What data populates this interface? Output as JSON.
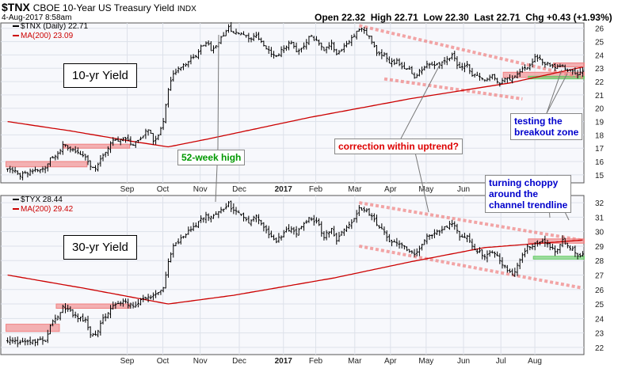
{
  "header": {
    "symbol": "$TNX",
    "name": "CBOE 10-Year US Treasury Yield",
    "exchange": "INDX",
    "date": "4-Aug-2017 8:58am",
    "open_label": "Open",
    "open": "22.32",
    "high_label": "High",
    "high": "22.71",
    "low_label": "Low",
    "low": "22.30",
    "last_label": "Last",
    "last": "22.71",
    "chg_label": "Chg",
    "chg": "+0.43 (+1.93%)"
  },
  "colors": {
    "price": "#000000",
    "ma": "#cc0000",
    "resistance": "#f08080",
    "support": "#66cc66",
    "annotation_red": "#dd0000",
    "annotation_green": "#009900",
    "annotation_blue": "#0000cc"
  },
  "annotations": {
    "week52": "52-week high",
    "correction": "correction within uptrend?",
    "testing": [
      "testing the",
      "breakout zone"
    ],
    "choppy": [
      "turning choppy",
      "around the",
      "channel trendline"
    ]
  },
  "chart_data": [
    {
      "type": "ohlc",
      "panel_label": "10-yr Yield",
      "legend": [
        {
          "text": "$TNX (Daily) 22.71",
          "color": "#000000"
        },
        {
          "text": "MA(200) 23.09",
          "color": "#cc0000"
        }
      ],
      "x_ticks": [
        "Sep",
        "Oct",
        "Nov",
        "Dec",
        "2017",
        "Feb",
        "Mar",
        "Apr",
        "May",
        "Jun",
        "Jul",
        "Aug"
      ],
      "y_ticks": [
        15,
        16,
        17,
        18,
        19,
        20,
        21,
        22,
        23,
        24,
        25,
        26
      ],
      "ylim": [
        14.4,
        26.4
      ],
      "anchors": [
        [
          0,
          15.5
        ],
        [
          5,
          15.0
        ],
        [
          10,
          15.3
        ],
        [
          15,
          15.5
        ],
        [
          17,
          16.2
        ],
        [
          20,
          16.5
        ],
        [
          22,
          17.2
        ],
        [
          25,
          17.0
        ],
        [
          28,
          16.6
        ],
        [
          31,
          16.4
        ],
        [
          33,
          15.6
        ],
        [
          35,
          15.4
        ],
        [
          38,
          16.4
        ],
        [
          42,
          17.6
        ],
        [
          46,
          17.7
        ],
        [
          50,
          17.3
        ],
        [
          53,
          17.8
        ],
        [
          56,
          18.4
        ],
        [
          58,
          17.6
        ],
        [
          60,
          17.9
        ],
        [
          62,
          19.0
        ],
        [
          64,
          21.5
        ],
        [
          66,
          22.7
        ],
        [
          69,
          23.0
        ],
        [
          72,
          23.5
        ],
        [
          75,
          24.0
        ],
        [
          77,
          24.6
        ],
        [
          79,
          25.0
        ],
        [
          81,
          24.4
        ],
        [
          83,
          24.8
        ],
        [
          86,
          25.5
        ],
        [
          88,
          26.0
        ],
        [
          90,
          25.6
        ],
        [
          93,
          25.7
        ],
        [
          96,
          25.2
        ],
        [
          99,
          25.5
        ],
        [
          102,
          24.8
        ],
        [
          105,
          24.0
        ],
        [
          107,
          23.9
        ],
        [
          110,
          24.5
        ],
        [
          113,
          25.0
        ],
        [
          115,
          24.3
        ],
        [
          118,
          24.7
        ],
        [
          120,
          25.4
        ],
        [
          123,
          25.1
        ],
        [
          126,
          24.3
        ],
        [
          129,
          24.8
        ],
        [
          131,
          24.0
        ],
        [
          134,
          24.7
        ],
        [
          137,
          25.3
        ],
        [
          140,
          26.0
        ],
        [
          143,
          25.6
        ],
        [
          145,
          25.0
        ],
        [
          147,
          24.2
        ],
        [
          150,
          24.0
        ],
        [
          152,
          23.4
        ],
        [
          155,
          23.5
        ],
        [
          158,
          22.9
        ],
        [
          160,
          23.0
        ],
        [
          162,
          22.3
        ],
        [
          164,
          22.7
        ],
        [
          167,
          23.3
        ],
        [
          170,
          23.2
        ],
        [
          173,
          23.4
        ],
        [
          175,
          23.6
        ],
        [
          177,
          24.0
        ],
        [
          180,
          23.0
        ],
        [
          183,
          23.2
        ],
        [
          185,
          22.5
        ],
        [
          188,
          22.4
        ],
        [
          190,
          22.0
        ],
        [
          193,
          22.4
        ],
        [
          196,
          21.9
        ],
        [
          198,
          22.2
        ],
        [
          201,
          22.2
        ],
        [
          204,
          22.8
        ],
        [
          207,
          23.0
        ],
        [
          210,
          23.8
        ],
        [
          212,
          23.6
        ],
        [
          215,
          23.3
        ],
        [
          218,
          23.0
        ],
        [
          221,
          23.2
        ],
        [
          224,
          22.8
        ],
        [
          227,
          22.5
        ],
        [
          229,
          22.7
        ]
      ],
      "ma200": [
        [
          0,
          19.0
        ],
        [
          25,
          18.3
        ],
        [
          50,
          17.5
        ],
        [
          64,
          17.1
        ],
        [
          80,
          17.7
        ],
        [
          120,
          19.3
        ],
        [
          160,
          20.7
        ],
        [
          200,
          21.9
        ],
        [
          229,
          23.09
        ]
      ],
      "resistance_lines": [
        [
          [
            140,
            26.2
          ],
          [
            229,
            22.3
          ]
        ]
      ],
      "support_lines": [
        [
          [
            150,
            22.2
          ],
          [
            205,
            20.7
          ]
        ]
      ],
      "zones": [
        {
          "x0": 0,
          "x1": 31,
          "y0": 15.6,
          "y1": 16.0,
          "color": "resistance"
        },
        {
          "x0": 23,
          "x1": 48,
          "y0": 17.0,
          "y1": 17.3,
          "color": "resistance"
        },
        {
          "x0": 198,
          "x1": 229,
          "y0": 22.3,
          "y1": 22.7,
          "color": "resistance"
        },
        {
          "x0": 218,
          "x1": 229,
          "y0": 23.1,
          "y1": 23.4,
          "color": "resistance"
        },
        {
          "x0": 208,
          "x1": 229,
          "y0": 22.2,
          "y1": 22.4,
          "color": "support"
        }
      ]
    },
    {
      "type": "ohlc",
      "panel_label": "30-yr Yield",
      "legend": [
        {
          "text": "$TYX 28.44",
          "color": "#000000"
        },
        {
          "text": "MA(200) 29.42",
          "color": "#cc0000"
        }
      ],
      "x_ticks": [
        "Sep",
        "Oct",
        "Nov",
        "Dec",
        "2017",
        "Feb",
        "Mar",
        "Apr",
        "May",
        "Jun",
        "Jul",
        "Aug"
      ],
      "y_ticks": [
        22,
        23,
        24,
        25,
        26,
        27,
        28,
        29,
        30,
        31,
        32
      ],
      "ylim": [
        21.5,
        32.5
      ],
      "anchors": [
        [
          0,
          22.5
        ],
        [
          5,
          22.3
        ],
        [
          10,
          22.4
        ],
        [
          15,
          22.5
        ],
        [
          17,
          23.5
        ],
        [
          20,
          24.2
        ],
        [
          22,
          24.8
        ],
        [
          25,
          24.5
        ],
        [
          28,
          24.0
        ],
        [
          31,
          23.8
        ],
        [
          33,
          23.0
        ],
        [
          35,
          22.8
        ],
        [
          38,
          24.0
        ],
        [
          42,
          24.8
        ],
        [
          46,
          25.1
        ],
        [
          50,
          24.9
        ],
        [
          53,
          25.2
        ],
        [
          56,
          25.6
        ],
        [
          58,
          25.5
        ],
        [
          60,
          25.9
        ],
        [
          62,
          26.0
        ],
        [
          64,
          28.0
        ],
        [
          66,
          29.0
        ],
        [
          69,
          29.5
        ],
        [
          72,
          30.0
        ],
        [
          75,
          30.5
        ],
        [
          77,
          30.8
        ],
        [
          79,
          31.2
        ],
        [
          81,
          31.0
        ],
        [
          83,
          31.2
        ],
        [
          86,
          31.5
        ],
        [
          88,
          31.9
        ],
        [
          90,
          31.4
        ],
        [
          93,
          31.3
        ],
        [
          96,
          30.7
        ],
        [
          99,
          31.1
        ],
        [
          102,
          30.3
        ],
        [
          105,
          29.6
        ],
        [
          107,
          29.4
        ],
        [
          110,
          29.9
        ],
        [
          113,
          30.3
        ],
        [
          115,
          29.9
        ],
        [
          118,
          30.5
        ],
        [
          120,
          31.0
        ],
        [
          123,
          30.7
        ],
        [
          126,
          29.7
        ],
        [
          129,
          30.2
        ],
        [
          131,
          29.4
        ],
        [
          134,
          30.1
        ],
        [
          137,
          30.6
        ],
        [
          140,
          31.7
        ],
        [
          143,
          31.4
        ],
        [
          145,
          31.1
        ],
        [
          147,
          30.4
        ],
        [
          150,
          30.0
        ],
        [
          152,
          29.2
        ],
        [
          155,
          29.3
        ],
        [
          158,
          29.0
        ],
        [
          160,
          28.7
        ],
        [
          162,
          28.3
        ],
        [
          164,
          28.7
        ],
        [
          167,
          29.7
        ],
        [
          170,
          29.9
        ],
        [
          173,
          30.2
        ],
        [
          175,
          30.4
        ],
        [
          177,
          30.6
        ],
        [
          180,
          29.7
        ],
        [
          183,
          29.6
        ],
        [
          185,
          28.9
        ],
        [
          188,
          28.6
        ],
        [
          190,
          28.3
        ],
        [
          193,
          28.6
        ],
        [
          196,
          28.1
        ],
        [
          198,
          27.5
        ],
        [
          201,
          26.9
        ],
        [
          204,
          28.0
        ],
        [
          207,
          28.9
        ],
        [
          210,
          29.2
        ],
        [
          212,
          29.3
        ],
        [
          215,
          29.2
        ],
        [
          218,
          28.6
        ],
        [
          221,
          29.4
        ],
        [
          224,
          28.9
        ],
        [
          227,
          28.4
        ],
        [
          229,
          28.44
        ]
      ],
      "ma200": [
        [
          0,
          27.0
        ],
        [
          30,
          26.1
        ],
        [
          64,
          25.0
        ],
        [
          90,
          25.6
        ],
        [
          130,
          26.8
        ],
        [
          160,
          27.9
        ],
        [
          190,
          28.9
        ],
        [
          229,
          29.42
        ]
      ],
      "resistance_lines": [
        [
          [
            140,
            32.0
          ],
          [
            229,
            29.4
          ]
        ]
      ],
      "support_lines": [
        [
          [
            140,
            29.0
          ],
          [
            229,
            26.1
          ]
        ]
      ],
      "zones": [
        {
          "x0": 0,
          "x1": 20,
          "y0": 23.1,
          "y1": 23.6,
          "color": "resistance"
        },
        {
          "x0": 20,
          "x1": 48,
          "y0": 24.7,
          "y1": 25.0,
          "color": "resistance"
        },
        {
          "x0": 208,
          "x1": 229,
          "y0": 29.2,
          "y1": 29.5,
          "color": "resistance"
        },
        {
          "x0": 210,
          "x1": 229,
          "y0": 28.1,
          "y1": 28.3,
          "color": "support"
        }
      ]
    }
  ]
}
